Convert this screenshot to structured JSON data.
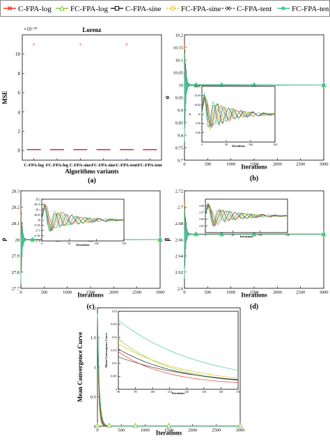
{
  "legend": [
    {
      "name": "C-FPA-log",
      "color": "#e8352a",
      "marker": "x",
      "dash": "solid"
    },
    {
      "name": "FC-FPA-log",
      "color": "#7bd13b",
      "marker": "triangle",
      "dash": "solid"
    },
    {
      "name": "C-FPA-sine",
      "color": "#222222",
      "marker": "square",
      "dash": "solid"
    },
    {
      "name": "FC-FPA-sine",
      "color": "#e6c21a",
      "marker": "circle",
      "dash": "dotted"
    },
    {
      "name": "C-FPA-tent",
      "color": "#444444",
      "marker": "x",
      "dash": "dotted"
    },
    {
      "name": "FC-FPA-tent",
      "color": "#3cc8a0",
      "marker": "dot",
      "dash": "solid"
    }
  ],
  "chart_data": [
    {
      "id": "a",
      "type": "box",
      "title": "Lorenz",
      "ylabel": "MSE",
      "xlabel": "Algorithms variants",
      "caption": "(a)",
      "exponent_label": "×10⁻²⁹",
      "categories": [
        "C-FPA-log",
        "FC-FPA-log",
        "C-FPA-sine",
        "FC-FPA-sine",
        "C-FPA-tent",
        "FC-FPA-tent"
      ],
      "yticks": [
        0,
        2,
        4,
        6,
        8,
        10
      ],
      "ylim": [
        -1,
        12
      ],
      "medians": [
        0.1,
        0.1,
        0.1,
        0.1,
        0.1,
        0.1
      ],
      "outliers": [
        {
          "category": "C-FPA-log",
          "value": 11
        },
        {
          "category": "C-FPA-sine",
          "value": 11
        },
        {
          "category": "C-FPA-tent",
          "value": 11
        }
      ],
      "outlier_color": "#e8352a",
      "median_color": "#e8352a"
    },
    {
      "id": "b",
      "type": "line",
      "ylabel": "σ",
      "xlabel": "Iterations",
      "caption": "(b)",
      "xlim": [
        0,
        3000
      ],
      "ylim": [
        9.7,
        10.2
      ],
      "xticks": [
        0,
        500,
        1000,
        1500,
        2000,
        2500,
        3000
      ],
      "yticks": [
        9.7,
        9.75,
        9.8,
        9.85,
        9.9,
        9.95,
        10,
        10.05,
        10.1,
        10.15,
        10.2
      ],
      "converged": 10,
      "inset": {
        "xlim": [
          0,
          150
        ],
        "ylim": [
          9.94,
          10.06
        ],
        "xticks": [
          0,
          50,
          100,
          150
        ],
        "yticks": [
          9.96,
          9.98,
          10,
          10.02,
          10.04,
          10.06
        ],
        "xlabel": "Iterations",
        "ylabel": "σ"
      }
    },
    {
      "id": "c",
      "type": "line",
      "ylabel": "ρ",
      "xlabel": "Iterations",
      "caption": "(c)",
      "xlim": [
        0,
        3000
      ],
      "ylim": [
        27.7,
        28.3
      ],
      "xticks": [
        0,
        500,
        1000,
        1500,
        2000,
        2500,
        3000
      ],
      "yticks": [
        27.7,
        27.8,
        27.9,
        28,
        28.1,
        28.2,
        28.3
      ],
      "converged": 28,
      "inset": {
        "xlim": [
          0,
          150
        ],
        "ylim": [
          27.8,
          28.2
        ],
        "xticks": [
          0,
          50,
          100,
          150
        ],
        "yticks": [
          27.8,
          27.85,
          27.9,
          27.95,
          28,
          28.05,
          28.1,
          28.15,
          28.2
        ],
        "xlabel": "Iterations",
        "ylabel": ""
      }
    },
    {
      "id": "d",
      "type": "line",
      "ylabel": "β",
      "xlabel": "Iterations",
      "caption": "(d)",
      "xlim": [
        0,
        3000
      ],
      "ylim": [
        2.6,
        2.72
      ],
      "xticks": [
        0,
        500,
        1000,
        1500,
        2000,
        2500,
        3000
      ],
      "yticks": [
        2.6,
        2.62,
        2.64,
        2.66,
        2.68,
        2.7,
        2.72
      ],
      "converged": 2.6667,
      "inset": {
        "xlim": [
          0,
          150
        ],
        "ylim": [
          2.64,
          2.69
        ],
        "xticks": [
          0,
          50,
          100,
          150
        ],
        "yticks": [
          2.65,
          2.66,
          2.67,
          2.68
        ],
        "xlabel": "Iterations",
        "ylabel": ""
      }
    },
    {
      "id": "e",
      "type": "line",
      "ylabel": "Mean Convergence Curve",
      "xlabel": "Iterations",
      "caption": "",
      "xlim": [
        0,
        3000
      ],
      "ylim": [
        0,
        2
      ],
      "xticks": [
        0,
        500,
        1000,
        1500,
        2000,
        2500,
        3000
      ],
      "yticks": [
        0,
        0.5,
        1,
        1.5,
        2
      ],
      "converged": 0,
      "inset": {
        "xlim": [
          80,
          150
        ],
        "ylim": [
          0,
          0.03
        ],
        "xticks": [
          80,
          90,
          100,
          110,
          120,
          130,
          140,
          150
        ],
        "yticks": [
          0,
          0.005,
          0.01,
          0.015,
          0.02,
          0.025,
          0.03
        ],
        "xlabel": "Iterations",
        "ylabel": "Mean Convergence Curve"
      }
    }
  ]
}
